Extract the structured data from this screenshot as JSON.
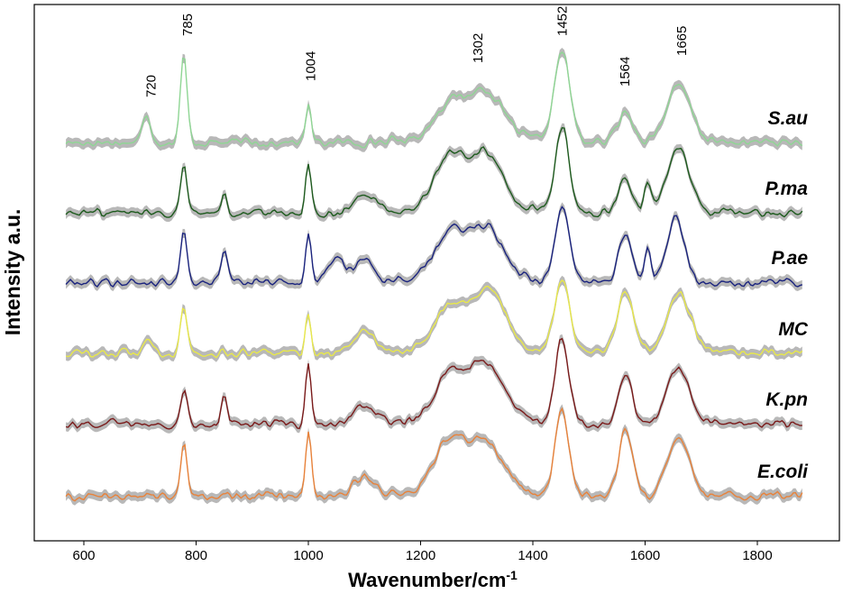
{
  "chart_data": {
    "type": "line",
    "xlabel": "Wavenumber/cm",
    "xlabel_sup": "-1",
    "ylabel": "Intensity a.u.",
    "xlim": [
      560,
      1880
    ],
    "x_ticks": [
      600,
      800,
      1000,
      1200,
      1400,
      1600,
      1800
    ],
    "grid": false,
    "band_color": "#b8b8b8",
    "peak_labels": [
      {
        "wavenumber": 720,
        "label": "720"
      },
      {
        "wavenumber": 785,
        "label": "785"
      },
      {
        "wavenumber": 1004,
        "label": "1004"
      },
      {
        "wavenumber": 1302,
        "label": "1302"
      },
      {
        "wavenumber": 1452,
        "label": "1452"
      },
      {
        "wavenumber": 1564,
        "label": "1564"
      },
      {
        "wavenumber": 1665,
        "label": "1665"
      }
    ],
    "series": [
      {
        "name": "S.au",
        "color": "#8fd694",
        "peaks": [
          [
            712,
            0.35,
            7
          ],
          [
            778,
            1.0,
            6
          ],
          [
            1000,
            0.42,
            5
          ],
          [
            1250,
            0.35,
            25
          ],
          [
            1315,
            0.5,
            30
          ],
          [
            1452,
            1.05,
            14
          ],
          [
            1565,
            0.35,
            14
          ],
          [
            1660,
            0.65,
            22
          ]
        ]
      },
      {
        "name": "P.ma",
        "color": "#1d5a1d",
        "peaks": [
          [
            778,
            0.55,
            6
          ],
          [
            850,
            0.25,
            5
          ],
          [
            1000,
            0.55,
            5
          ],
          [
            1100,
            0.2,
            20
          ],
          [
            1250,
            0.55,
            25
          ],
          [
            1315,
            0.6,
            28
          ],
          [
            1452,
            1.0,
            12
          ],
          [
            1565,
            0.4,
            12
          ],
          [
            1605,
            0.35,
            6
          ],
          [
            1660,
            0.75,
            20
          ]
        ]
      },
      {
        "name": "P.ae",
        "color": "#1a237e",
        "peaks": [
          [
            778,
            0.6,
            6
          ],
          [
            850,
            0.4,
            6
          ],
          [
            1000,
            0.55,
            5
          ],
          [
            1050,
            0.3,
            15
          ],
          [
            1100,
            0.3,
            15
          ],
          [
            1250,
            0.45,
            25
          ],
          [
            1315,
            0.55,
            30
          ],
          [
            1452,
            0.9,
            12
          ],
          [
            1565,
            0.55,
            12
          ],
          [
            1605,
            0.35,
            6
          ],
          [
            1655,
            0.75,
            15
          ]
        ]
      },
      {
        "name": "MC",
        "color": "#e8e84a",
        "peaks": [
          [
            712,
            0.15,
            8
          ],
          [
            778,
            0.55,
            6
          ],
          [
            1000,
            0.45,
            5
          ],
          [
            1100,
            0.25,
            20
          ],
          [
            1250,
            0.45,
            25
          ],
          [
            1320,
            0.65,
            30
          ],
          [
            1452,
            0.85,
            14
          ],
          [
            1565,
            0.7,
            15
          ],
          [
            1660,
            0.7,
            22
          ]
        ]
      },
      {
        "name": "K.pn",
        "color": "#7a1a1a",
        "peaks": [
          [
            778,
            0.4,
            6
          ],
          [
            850,
            0.3,
            5
          ],
          [
            1000,
            0.7,
            5
          ],
          [
            1100,
            0.2,
            20
          ],
          [
            1250,
            0.45,
            25
          ],
          [
            1315,
            0.6,
            30
          ],
          [
            1452,
            1.0,
            12
          ],
          [
            1565,
            0.55,
            12
          ],
          [
            1660,
            0.65,
            20
          ]
        ]
      },
      {
        "name": "E.coli",
        "color": "#e8823a",
        "peaks": [
          [
            778,
            0.6,
            6
          ],
          [
            1000,
            0.75,
            5
          ],
          [
            1100,
            0.2,
            20
          ],
          [
            1250,
            0.55,
            25
          ],
          [
            1315,
            0.55,
            30
          ],
          [
            1452,
            1.0,
            12
          ],
          [
            1565,
            0.75,
            12
          ],
          [
            1660,
            0.7,
            20
          ]
        ]
      }
    ]
  }
}
